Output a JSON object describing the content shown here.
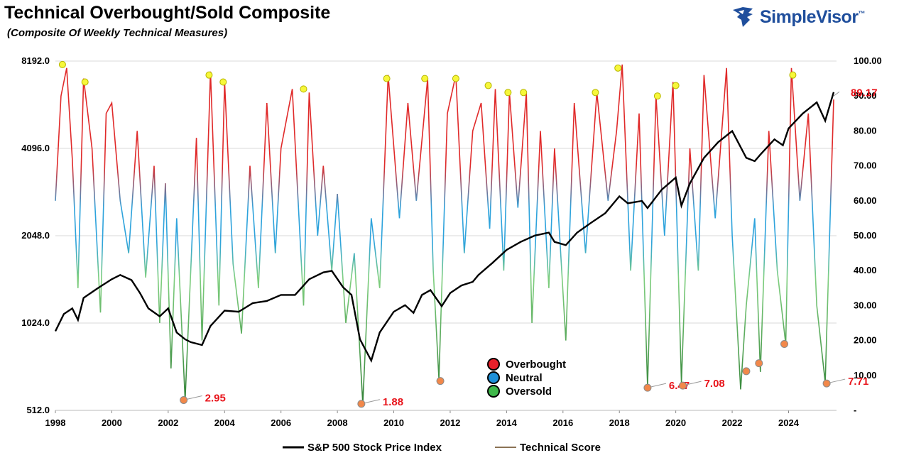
{
  "header": {
    "title": "Technical Overbought/Sold Composite",
    "subtitle": "(Composite Of Weekly Technical Measures)"
  },
  "brand": {
    "name": "SimpleVisor",
    "tm": "™",
    "color": "#1f4e9c"
  },
  "chart_data": {
    "type": "line",
    "x_range": [
      1998,
      2025.7
    ],
    "x_ticks": [
      "1998",
      "2000",
      "2002",
      "2004",
      "2006",
      "2008",
      "2010",
      "2012",
      "2014",
      "2016",
      "2018",
      "2020",
      "2022",
      "2024"
    ],
    "left_axis": {
      "scale": "log2",
      "range": [
        512,
        8192
      ],
      "ticks": [
        "512.0",
        "1024.0",
        "2048.0",
        "4096.0",
        "8192.0"
      ]
    },
    "right_axis": {
      "range": [
        0,
        100
      ],
      "ticks": [
        "-",
        "10.00",
        "20.00",
        "30.00",
        "40.00",
        "50.00",
        "60.00",
        "70.00",
        "80.00",
        "90.00",
        "100.00"
      ]
    },
    "grid": true,
    "legend_bottom": [
      {
        "name": "S&P 500 Stock Price Index",
        "color": "#000000"
      },
      {
        "name": "Technical Score",
        "color": "#8b7355"
      }
    ],
    "legend_inner": [
      {
        "name": "Overbought",
        "color": "#e8202a"
      },
      {
        "name": "Neutral",
        "color": "#1e90d8"
      },
      {
        "name": "Oversold",
        "color": "#3fb84a"
      }
    ],
    "colors": {
      "overbought": "#e02a2a",
      "neutral": "#2ea3dc",
      "oversold": "#3a9e3f",
      "low_marker": "#f2884a",
      "high_marker": "#f7f73a"
    },
    "sp500": {
      "x": [
        1998.0,
        1998.3,
        1998.6,
        1998.8,
        1999.0,
        1999.5,
        2000.0,
        2000.3,
        2000.7,
        2001.0,
        2001.3,
        2001.7,
        2002.0,
        2002.3,
        2002.6,
        2002.8,
        2003.2,
        2003.5,
        2004.0,
        2004.5,
        2005.0,
        2005.5,
        2006.0,
        2006.5,
        2007.0,
        2007.5,
        2007.8,
        2008.2,
        2008.5,
        2008.8,
        2009.2,
        2009.5,
        2010.0,
        2010.4,
        2010.7,
        2011.0,
        2011.3,
        2011.7,
        2012.0,
        2012.4,
        2012.8,
        2013.0,
        2013.5,
        2014.0,
        2014.5,
        2015.0,
        2015.5,
        2015.7,
        2016.1,
        2016.5,
        2017.0,
        2017.5,
        2018.0,
        2018.3,
        2018.8,
        2019.0,
        2019.5,
        2020.0,
        2020.2,
        2020.5,
        2021.0,
        2021.5,
        2022.0,
        2022.5,
        2022.8,
        2023.0,
        2023.5,
        2023.8,
        2024.0,
        2024.5,
        2025.0,
        2025.3,
        2025.6
      ],
      "y": [
        960,
        1100,
        1150,
        1050,
        1250,
        1350,
        1450,
        1500,
        1440,
        1300,
        1150,
        1080,
        1150,
        950,
        900,
        880,
        860,
        1000,
        1130,
        1120,
        1200,
        1220,
        1280,
        1280,
        1450,
        1530,
        1550,
        1360,
        1280,
        900,
        760,
        950,
        1120,
        1180,
        1110,
        1280,
        1330,
        1170,
        1300,
        1380,
        1420,
        1500,
        1650,
        1830,
        1950,
        2050,
        2100,
        1950,
        1900,
        2100,
        2270,
        2450,
        2800,
        2650,
        2700,
        2550,
        2950,
        3250,
        2600,
        3100,
        3800,
        4300,
        4700,
        3800,
        3700,
        3900,
        4400,
        4200,
        4800,
        5400,
        5900,
        5100,
        6400
      ]
    },
    "technical_score": {
      "x": [
        1998.0,
        1998.2,
        1998.4,
        1998.6,
        1998.8,
        1999.0,
        1999.3,
        1999.6,
        1999.8,
        2000.0,
        2000.3,
        2000.6,
        2000.9,
        2001.2,
        2001.5,
        2001.7,
        2001.9,
        2002.1,
        2002.3,
        2002.6,
        2002.8,
        2003.0,
        2003.2,
        2003.5,
        2003.8,
        2004.0,
        2004.3,
        2004.6,
        2004.9,
        2005.2,
        2005.5,
        2005.8,
        2006.0,
        2006.4,
        2006.8,
        2007.0,
        2007.3,
        2007.5,
        2007.8,
        2008.0,
        2008.3,
        2008.6,
        2008.9,
        2009.2,
        2009.5,
        2009.8,
        2010.2,
        2010.5,
        2010.8,
        2011.2,
        2011.4,
        2011.6,
        2011.9,
        2012.2,
        2012.5,
        2012.8,
        2013.1,
        2013.4,
        2013.6,
        2013.9,
        2014.1,
        2014.4,
        2014.7,
        2014.9,
        2015.2,
        2015.5,
        2015.7,
        2016.1,
        2016.4,
        2016.8,
        2017.2,
        2017.6,
        2017.9,
        2018.1,
        2018.4,
        2018.7,
        2019.0,
        2019.3,
        2019.6,
        2019.9,
        2020.2,
        2020.5,
        2020.8,
        2021.0,
        2021.4,
        2021.8,
        2022.0,
        2022.3,
        2022.5,
        2022.8,
        2023.0,
        2023.3,
        2023.6,
        2023.9,
        2024.1,
        2024.4,
        2024.7,
        2025.0,
        2025.3,
        2025.6
      ],
      "y": [
        60,
        90,
        98,
        72,
        35,
        95,
        75,
        28,
        85,
        88,
        60,
        45,
        80,
        38,
        70,
        25,
        65,
        12,
        55,
        3,
        40,
        78,
        20,
        97,
        30,
        94,
        42,
        22,
        70,
        35,
        88,
        45,
        75,
        92,
        30,
        91,
        50,
        70,
        40,
        62,
        25,
        45,
        2,
        55,
        35,
        96,
        55,
        88,
        60,
        95,
        40,
        9,
        85,
        96,
        45,
        80,
        88,
        52,
        92,
        40,
        91,
        58,
        91,
        25,
        80,
        35,
        75,
        20,
        88,
        45,
        91,
        60,
        80,
        99,
        40,
        85,
        7,
        90,
        50,
        94,
        8,
        75,
        40,
        96,
        55,
        98,
        50,
        6,
        30,
        55,
        11,
        80,
        40,
        19,
        98,
        60,
        85,
        30,
        8,
        89
      ]
    },
    "highs": [
      {
        "x": 1998.25,
        "y": 99
      },
      {
        "x": 1999.05,
        "y": 94
      },
      {
        "x": 2003.45,
        "y": 96
      },
      {
        "x": 2003.95,
        "y": 94
      },
      {
        "x": 2006.8,
        "y": 92
      },
      {
        "x": 2009.75,
        "y": 95
      },
      {
        "x": 2011.1,
        "y": 95
      },
      {
        "x": 2012.2,
        "y": 95
      },
      {
        "x": 2013.35,
        "y": 93
      },
      {
        "x": 2014.05,
        "y": 91
      },
      {
        "x": 2014.6,
        "y": 91
      },
      {
        "x": 2017.15,
        "y": 91
      },
      {
        "x": 2017.95,
        "y": 98
      },
      {
        "x": 2019.35,
        "y": 90
      },
      {
        "x": 2020.0,
        "y": 93
      },
      {
        "x": 2024.15,
        "y": 96
      }
    ],
    "lows": [
      {
        "x": 2002.55,
        "y": 2.95,
        "label": "2.95"
      },
      {
        "x": 2008.85,
        "y": 1.88,
        "label": "1.88"
      },
      {
        "x": 2011.65,
        "y": 8.4,
        "label": ""
      },
      {
        "x": 2019.0,
        "y": 6.47,
        "label": "6.47"
      },
      {
        "x": 2020.25,
        "y": 7.08,
        "label": "7.08"
      },
      {
        "x": 2022.5,
        "y": 11.2,
        "label": ""
      },
      {
        "x": 2022.95,
        "y": 13.5,
        "label": ""
      },
      {
        "x": 2023.85,
        "y": 19.0,
        "label": ""
      },
      {
        "x": 2025.35,
        "y": 7.71,
        "label": "7.71"
      }
    ],
    "latest": {
      "x": 2025.6,
      "y": 89.17,
      "label": "89.17"
    }
  }
}
